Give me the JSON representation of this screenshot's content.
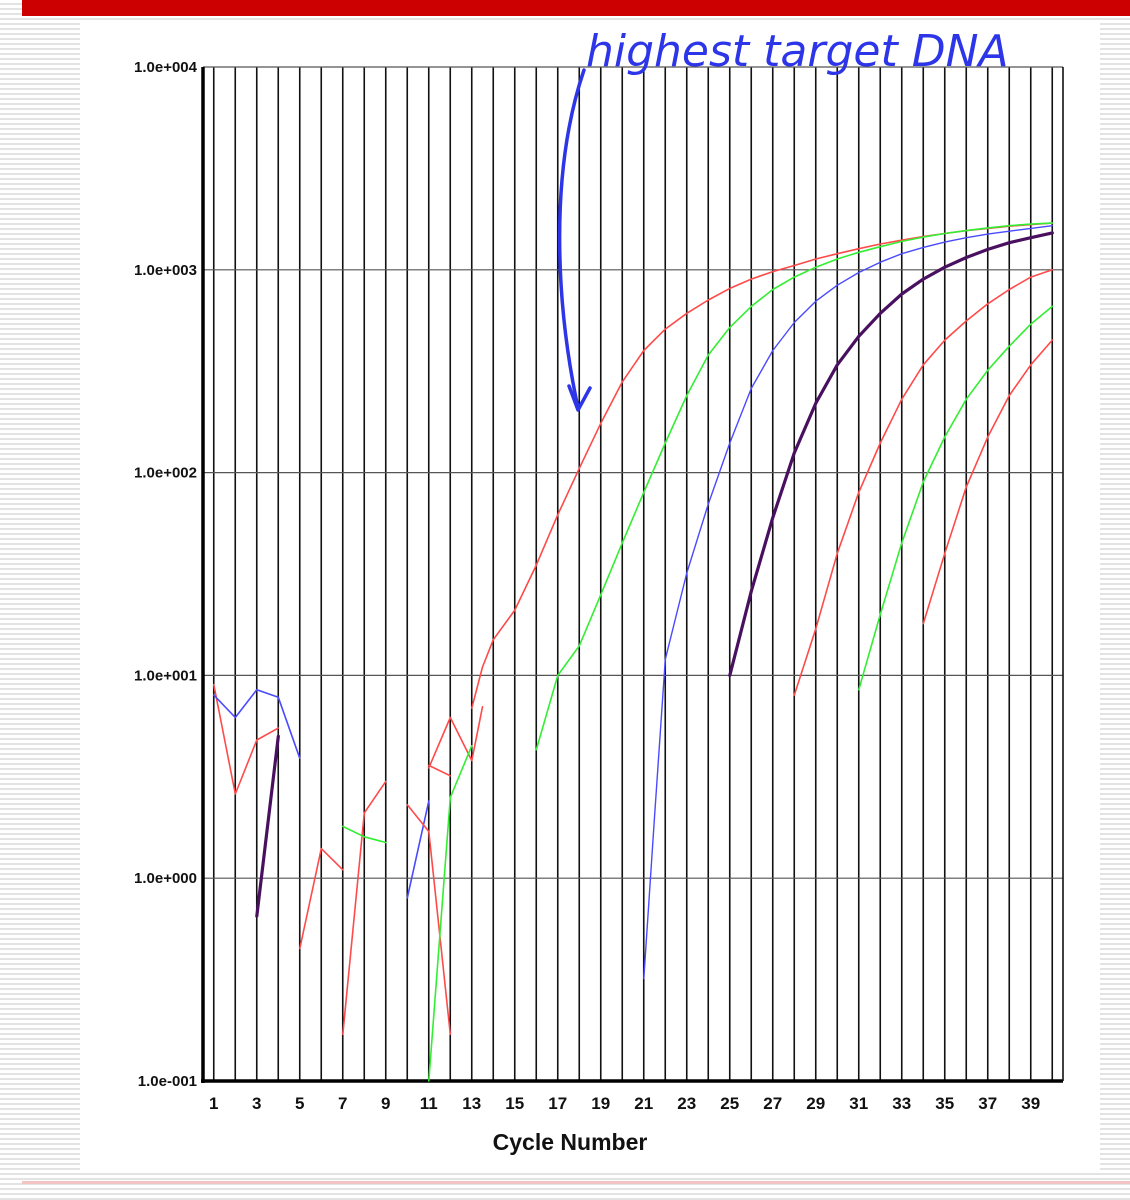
{
  "chart_data": {
    "type": "line",
    "title": "",
    "xlabel": "Cycle Number",
    "ylabel": "",
    "x_range": [
      0.5,
      40.5
    ],
    "ylim": [
      0.1,
      10000
    ],
    "yscale": "log",
    "grid": {
      "vertical": true,
      "horizontal": true
    },
    "x_tick_labels": [
      "1",
      "3",
      "5",
      "7",
      "9",
      "11",
      "13",
      "15",
      "17",
      "19",
      "21",
      "23",
      "25",
      "27",
      "29",
      "31",
      "33",
      "35",
      "37",
      "39"
    ],
    "y_tick_labels": [
      {
        "value": 10000,
        "label": "1.0e+004"
      },
      {
        "value": 1000,
        "label": "1.0e+003"
      },
      {
        "value": 100,
        "label": "1.0e+002"
      },
      {
        "value": 10,
        "label": "1.0e+001"
      },
      {
        "value": 1,
        "label": "1.0e+000"
      },
      {
        "value": 0.1,
        "label": "1.0e-001"
      }
    ],
    "annotation": {
      "text": "highest target DNA",
      "color": "#2d35e8"
    },
    "colors": {
      "red": "#ff4a4a",
      "green": "#33ee33",
      "blue": "#4a4aff",
      "purple": "#4a1060"
    },
    "series": [
      {
        "color": "red",
        "width": 1.6,
        "points": [
          [
            13,
            6.9
          ],
          [
            13.5,
            11
          ],
          [
            14,
            15
          ],
          [
            15,
            21
          ],
          [
            16,
            35
          ],
          [
            17,
            62
          ],
          [
            18,
            105
          ],
          [
            19,
            175
          ],
          [
            20,
            280
          ],
          [
            21,
            400
          ],
          [
            22,
            510
          ],
          [
            23,
            610
          ],
          [
            24,
            710
          ],
          [
            25,
            810
          ],
          [
            26,
            900
          ],
          [
            27,
            980
          ],
          [
            28,
            1050
          ],
          [
            29,
            1130
          ],
          [
            30,
            1200
          ],
          [
            31,
            1270
          ],
          [
            32,
            1340
          ],
          [
            33,
            1400
          ],
          [
            34,
            1460
          ],
          [
            35,
            1510
          ],
          [
            36,
            1560
          ],
          [
            37,
            1600
          ],
          [
            38,
            1640
          ],
          [
            39,
            1670
          ],
          [
            40,
            1700
          ]
        ]
      },
      {
        "color": "green",
        "width": 1.6,
        "points": [
          [
            16,
            4.3
          ],
          [
            17,
            10
          ],
          [
            18,
            14
          ],
          [
            19,
            25
          ],
          [
            20,
            45
          ],
          [
            21,
            80
          ],
          [
            22,
            140
          ],
          [
            23,
            240
          ],
          [
            24,
            380
          ],
          [
            25,
            520
          ],
          [
            26,
            660
          ],
          [
            27,
            800
          ],
          [
            28,
            920
          ],
          [
            29,
            1030
          ],
          [
            30,
            1130
          ],
          [
            31,
            1220
          ],
          [
            32,
            1300
          ],
          [
            33,
            1380
          ],
          [
            34,
            1450
          ],
          [
            35,
            1510
          ],
          [
            36,
            1560
          ],
          [
            37,
            1610
          ],
          [
            38,
            1650
          ],
          [
            39,
            1680
          ],
          [
            40,
            1700
          ]
        ]
      },
      {
        "color": "blue",
        "width": 1.4,
        "points": [
          [
            21,
            0.32
          ],
          [
            21.5,
            2
          ],
          [
            22,
            12
          ],
          [
            23,
            32
          ],
          [
            24,
            70
          ],
          [
            25,
            140
          ],
          [
            26,
            260
          ],
          [
            27,
            400
          ],
          [
            28,
            550
          ],
          [
            29,
            700
          ],
          [
            30,
            840
          ],
          [
            31,
            970
          ],
          [
            32,
            1090
          ],
          [
            33,
            1200
          ],
          [
            34,
            1290
          ],
          [
            35,
            1370
          ],
          [
            36,
            1440
          ],
          [
            37,
            1500
          ],
          [
            38,
            1550
          ],
          [
            39,
            1600
          ],
          [
            40,
            1650
          ]
        ]
      },
      {
        "color": "purple",
        "width": 3.2,
        "points": [
          [
            25,
            10
          ],
          [
            26,
            26
          ],
          [
            27,
            60
          ],
          [
            28,
            125
          ],
          [
            29,
            220
          ],
          [
            30,
            340
          ],
          [
            31,
            470
          ],
          [
            32,
            610
          ],
          [
            33,
            760
          ],
          [
            34,
            900
          ],
          [
            35,
            1030
          ],
          [
            36,
            1150
          ],
          [
            37,
            1260
          ],
          [
            38,
            1360
          ],
          [
            39,
            1440
          ],
          [
            40,
            1520
          ]
        ]
      },
      {
        "color": "red",
        "width": 1.6,
        "points": [
          [
            28,
            8
          ],
          [
            29,
            17
          ],
          [
            30,
            40
          ],
          [
            31,
            80
          ],
          [
            32,
            140
          ],
          [
            33,
            230
          ],
          [
            34,
            340
          ],
          [
            35,
            450
          ],
          [
            36,
            560
          ],
          [
            37,
            680
          ],
          [
            38,
            800
          ],
          [
            39,
            920
          ],
          [
            40,
            1000
          ]
        ]
      },
      {
        "color": "green",
        "width": 1.6,
        "points": [
          [
            31,
            8.5
          ],
          [
            32,
            20
          ],
          [
            33,
            45
          ],
          [
            34,
            90
          ],
          [
            35,
            150
          ],
          [
            36,
            230
          ],
          [
            37,
            320
          ],
          [
            38,
            420
          ],
          [
            39,
            540
          ],
          [
            40,
            660
          ]
        ]
      },
      {
        "color": "red",
        "width": 1.6,
        "points": [
          [
            34,
            18
          ],
          [
            35,
            40
          ],
          [
            36,
            85
          ],
          [
            37,
            150
          ],
          [
            38,
            240
          ],
          [
            39,
            340
          ],
          [
            40,
            450
          ]
        ]
      },
      {
        "color": "red",
        "width": 1.6,
        "points": [
          [
            1,
            9
          ],
          [
            2,
            2.6
          ],
          [
            3,
            4.8
          ],
          [
            4,
            5.5
          ]
        ]
      },
      {
        "color": "blue",
        "width": 1.6,
        "points": [
          [
            1,
            8
          ],
          [
            2,
            6.2
          ],
          [
            3,
            8.5
          ],
          [
            4,
            7.8
          ],
          [
            5,
            3.9
          ]
        ]
      },
      {
        "color": "purple",
        "width": 3.2,
        "points": [
          [
            3,
            0.65
          ],
          [
            4,
            5
          ]
        ]
      },
      {
        "color": "red",
        "width": 1.6,
        "points": [
          [
            5,
            0.45
          ],
          [
            6,
            1.4
          ],
          [
            7,
            1.1
          ]
        ]
      },
      {
        "color": "red",
        "width": 1.6,
        "points": [
          [
            7,
            0.17
          ],
          [
            8,
            2.1
          ],
          [
            9,
            3.0
          ]
        ]
      },
      {
        "color": "green",
        "width": 1.6,
        "points": [
          [
            7,
            1.8
          ],
          [
            8,
            1.6
          ],
          [
            9,
            1.5
          ]
        ]
      },
      {
        "color": "blue",
        "width": 1.6,
        "points": [
          [
            10,
            0.8
          ],
          [
            11,
            2.4
          ]
        ]
      },
      {
        "color": "red",
        "width": 1.6,
        "points": [
          [
            10,
            2.3
          ],
          [
            11,
            1.7
          ],
          [
            12,
            0.17
          ]
        ]
      },
      {
        "color": "red",
        "width": 1.6,
        "points": [
          [
            11,
            3.5
          ],
          [
            12,
            6.2
          ],
          [
            13,
            3.8
          ],
          [
            13.5,
            7
          ]
        ]
      },
      {
        "color": "green",
        "width": 1.6,
        "points": [
          [
            11,
            0.1
          ],
          [
            12,
            2.5
          ],
          [
            13,
            4.5
          ]
        ]
      },
      {
        "color": "red",
        "width": 1.6,
        "points": [
          [
            11,
            3.6
          ],
          [
            12,
            3.2
          ]
        ]
      }
    ]
  }
}
